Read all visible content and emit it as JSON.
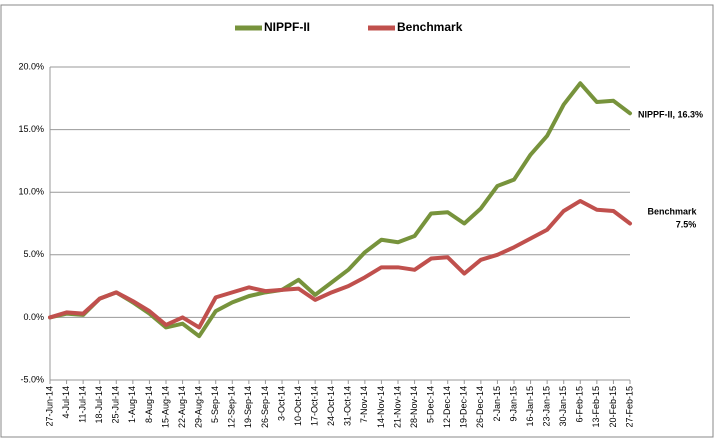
{
  "chart_data": {
    "type": "line",
    "categories": [
      "27-Jun-14",
      "4-Jul-14",
      "11-Jul-14",
      "18-Jul-14",
      "25-Jul-14",
      "1-Aug-14",
      "8-Aug-14",
      "15-Aug-14",
      "22-Aug-14",
      "29-Aug-14",
      "5-Sep-14",
      "12-Sep-14",
      "19-Sep-14",
      "26-Sep-14",
      "3-Oct-14",
      "10-Oct-14",
      "17-Oct-14",
      "24-Oct-14",
      "31-Oct-14",
      "7-Nov-14",
      "14-Nov-14",
      "21-Nov-14",
      "28-Nov-14",
      "5-Dec-14",
      "12-Dec-14",
      "19-Dec-14",
      "26-Dec-14",
      "2-Jan-15",
      "9-Jan-15",
      "16-Jan-15",
      "23-Jan-15",
      "30-Jan-15",
      "6-Feb-15",
      "13-Feb-15",
      "20-Feb-15",
      "27-Feb-15"
    ],
    "series": [
      {
        "name": "NIPPF-II",
        "color": "#77933c",
        "values": [
          0,
          0.3,
          0.2,
          1.5,
          2.0,
          1.2,
          0.3,
          -0.8,
          -0.5,
          -1.5,
          0.5,
          1.2,
          1.7,
          2.0,
          2.2,
          3.0,
          1.8,
          2.8,
          3.8,
          5.2,
          6.2,
          6.0,
          6.5,
          8.3,
          8.4,
          7.5,
          8.7,
          10.5,
          11.0,
          13.0,
          14.5,
          17.0,
          18.7,
          17.2,
          17.3,
          16.3
        ]
      },
      {
        "name": "Benchmark",
        "color": "#c0504d",
        "values": [
          0,
          0.4,
          0.3,
          1.5,
          2.0,
          1.3,
          0.5,
          -0.6,
          0.0,
          -0.8,
          1.6,
          2.0,
          2.4,
          2.1,
          2.2,
          2.3,
          1.4,
          2.0,
          2.5,
          3.2,
          4.0,
          4.0,
          3.8,
          4.7,
          4.8,
          3.5,
          4.6,
          5.0,
          5.6,
          6.3,
          7.0,
          8.5,
          9.3,
          8.6,
          8.5,
          7.5
        ]
      }
    ],
    "ylim": [
      -5,
      20
    ],
    "yticks": [
      {
        "value": -5,
        "label": "-5.0%"
      },
      {
        "value": 0,
        "label": "0.0%"
      },
      {
        "value": 5,
        "label": "5.0%"
      },
      {
        "value": 10,
        "label": "10.0%"
      },
      {
        "value": 15,
        "label": "15.0%"
      },
      {
        "value": 20,
        "label": "20.0%"
      }
    ],
    "grid": true,
    "legend": "top",
    "annotations": [
      "NIPPF-II, 16.3%",
      "Benchmark",
      "7.5%"
    ]
  }
}
